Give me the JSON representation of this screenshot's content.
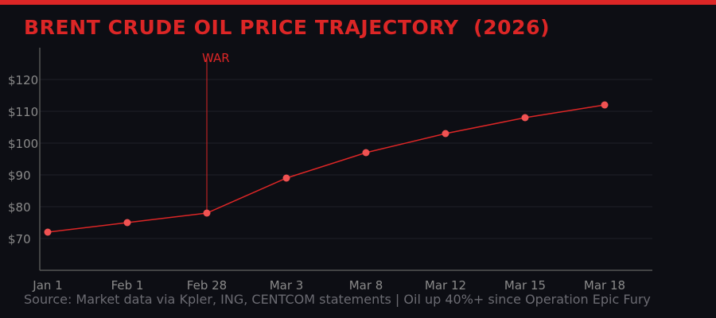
{
  "title": "BRENT CRUDE OIL PRICE TRAJECTORY  (2026)",
  "source": "Source: Market data via Kpler, ING, CENTCOM statements  |  Oil up 40%+ since Operation Epic Fury",
  "colors": {
    "accent": "#dc2626",
    "line": "#dc2626",
    "marker": "#f05252",
    "background": "#0d0e14",
    "grid": "#1f2029",
    "axis": "#555555",
    "tick_text": "#8a8a8a"
  },
  "chart_data": {
    "type": "line",
    "categories": [
      "Jan 1",
      "Feb 1",
      "Feb 28",
      "Mar 3",
      "Mar 8",
      "Mar 12",
      "Mar 15",
      "Mar 18"
    ],
    "values": [
      72,
      75,
      78,
      89,
      97,
      103,
      108,
      112
    ],
    "ylim": [
      60,
      130
    ],
    "yticks": [
      70,
      80,
      90,
      100,
      110,
      120
    ],
    "ytick_labels": [
      "$70",
      "$80",
      "$90",
      "$100",
      "$110",
      "$120"
    ],
    "grid": true,
    "annotation": {
      "label": "WAR",
      "category": "Feb 28"
    }
  }
}
